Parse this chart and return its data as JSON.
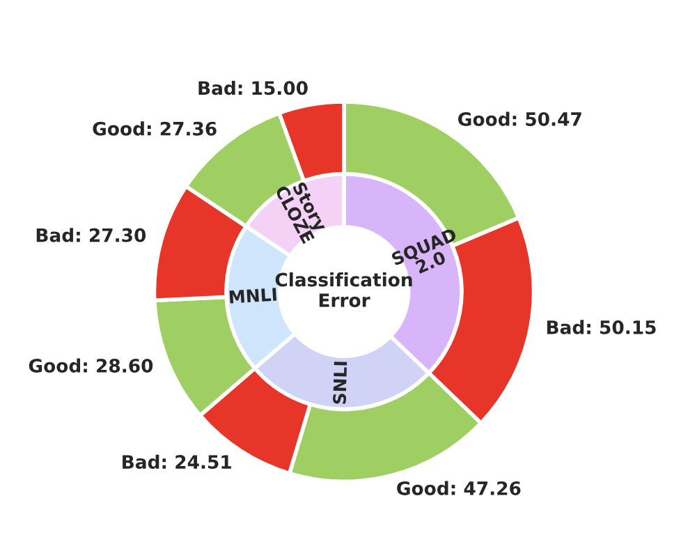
{
  "chart_data": {
    "type": "donut",
    "title": "Classification\nError",
    "series": [
      {
        "values": [
          37.18,
          26.52,
          20.65,
          15.65
        ],
        "colors": [
          "#d8b4f8",
          "#d0d2f6",
          "#cfe5fb",
          "#f4d2f6"
        ],
        "value_labels": [
          "SQUAD\n2.0",
          "SNLI",
          "MNLI",
          "Story\nCLOZE"
        ]
      },
      {
        "values": [
          50.47,
          50.15,
          47.26,
          24.51,
          28.6,
          27.3,
          27.36,
          15.0
        ],
        "colors": [
          "#9fcf63",
          "#e8352a",
          "#9fcf63",
          "#e8352a",
          "#9fcf63",
          "#e8352a",
          "#9fcf63",
          "#e8352a"
        ],
        "value_labels": [
          "Good: 50.47",
          "Bad: 50.15",
          "Good: 47.26",
          "Bad: 24.51",
          "Good: 28.60",
          "Bad: 27.30",
          "Good: 27.36",
          "Bad: 15.00"
        ]
      }
    ]
  }
}
